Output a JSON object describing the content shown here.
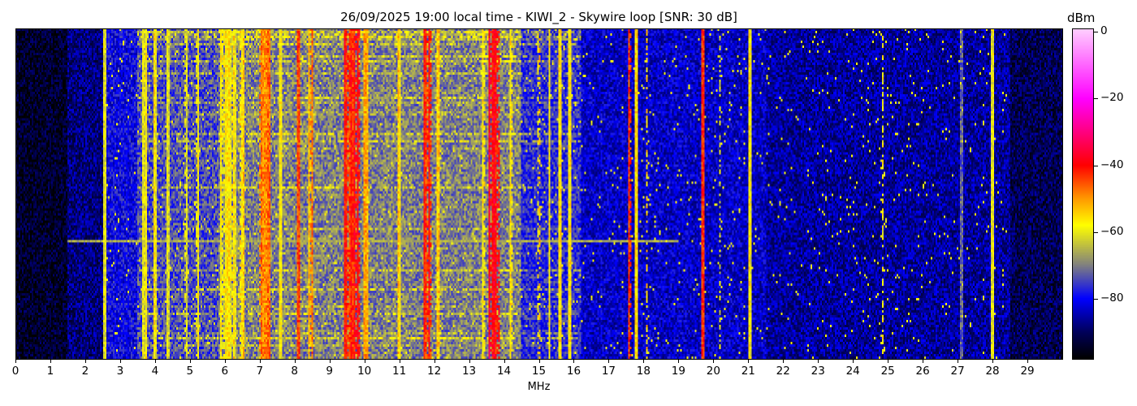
{
  "chart_data": {
    "type": "heatmap",
    "title": "26/09/2025 19:00 local time - KIWI_2 - Skywire loop [SNR: 30 dB]",
    "xlabel": "MHz",
    "xlim": [
      0,
      30
    ],
    "xticks": [
      "0",
      "1",
      "2",
      "3",
      "4",
      "5",
      "6",
      "7",
      "8",
      "9",
      "10",
      "11",
      "12",
      "13",
      "14",
      "15",
      "16",
      "17",
      "18",
      "19",
      "20",
      "21",
      "22",
      "23",
      "24",
      "25",
      "26",
      "27",
      "28",
      "29"
    ],
    "colorbar": {
      "label": "dBm",
      "range": [
        -98,
        1
      ],
      "ticks": [
        0,
        -20,
        -40,
        -60,
        -80
      ],
      "tick_labels": [
        "0",
        "−20",
        "−40",
        "−60",
        "−80"
      ],
      "colormap": [
        {
          "dbm": 1,
          "color": "#ffd0ff"
        },
        {
          "dbm": -20,
          "color": "#ff00ff"
        },
        {
          "dbm": -40,
          "color": "#ff0000"
        },
        {
          "dbm": -50,
          "color": "#ff9900"
        },
        {
          "dbm": -58,
          "color": "#ffff00"
        },
        {
          "dbm": -70,
          "color": "#808080"
        },
        {
          "dbm": -80,
          "color": "#0000ff"
        },
        {
          "dbm": -90,
          "color": "#00005a"
        },
        {
          "dbm": -98,
          "color": "#000000"
        }
      ]
    },
    "noise_floor_dbm": [
      {
        "from": 0,
        "to": 1.5,
        "dbm": -94
      },
      {
        "from": 1.5,
        "to": 2.5,
        "dbm": -88
      },
      {
        "from": 2.5,
        "to": 3.5,
        "dbm": -80
      },
      {
        "from": 3.5,
        "to": 5.8,
        "dbm": -74
      },
      {
        "from": 5.8,
        "to": 14.5,
        "dbm": -70
      },
      {
        "from": 14.5,
        "to": 16.2,
        "dbm": -77
      },
      {
        "from": 16.2,
        "to": 21.5,
        "dbm": -83
      },
      {
        "from": 21.5,
        "to": 28.5,
        "dbm": -86
      },
      {
        "from": 28.5,
        "to": 30,
        "dbm": -91
      }
    ],
    "signals": [
      {
        "mhz": 2.55,
        "width": 0.04,
        "dbm": -60
      },
      {
        "mhz": 3.7,
        "width": 0.08,
        "dbm": -60
      },
      {
        "mhz": 4.0,
        "width": 0.06,
        "dbm": -58
      },
      {
        "mhz": 4.4,
        "width": 0.05,
        "dbm": -60
      },
      {
        "mhz": 4.9,
        "width": 0.05,
        "dbm": -60
      },
      {
        "mhz": 5.2,
        "width": 0.05,
        "dbm": -57
      },
      {
        "mhz": 6.1,
        "width": 0.4,
        "dbm": -58
      },
      {
        "mhz": 6.5,
        "width": 0.12,
        "dbm": -55
      },
      {
        "mhz": 7.15,
        "width": 0.3,
        "dbm": -48
      },
      {
        "mhz": 7.6,
        "width": 0.06,
        "dbm": -57
      },
      {
        "mhz": 8.1,
        "width": 0.06,
        "dbm": -46
      },
      {
        "mhz": 8.45,
        "width": 0.1,
        "dbm": -50
      },
      {
        "mhz": 9.65,
        "width": 0.45,
        "dbm": -42
      },
      {
        "mhz": 10.05,
        "width": 0.1,
        "dbm": -50
      },
      {
        "mhz": 11.0,
        "width": 0.06,
        "dbm": -55
      },
      {
        "mhz": 11.8,
        "width": 0.2,
        "dbm": -42
      },
      {
        "mhz": 12.1,
        "width": 0.05,
        "dbm": -55
      },
      {
        "mhz": 13.4,
        "width": 0.05,
        "dbm": -55
      },
      {
        "mhz": 13.72,
        "width": 0.25,
        "dbm": -38
      },
      {
        "mhz": 14.2,
        "width": 0.08,
        "dbm": -58
      },
      {
        "mhz": 15.0,
        "width": 0.04,
        "dbm": -55
      },
      {
        "mhz": 15.3,
        "width": 0.04,
        "dbm": -55
      },
      {
        "mhz": 15.6,
        "width": 0.05,
        "dbm": -55
      },
      {
        "mhz": 15.9,
        "width": 0.05,
        "dbm": -58
      },
      {
        "mhz": 17.62,
        "width": 0.06,
        "dbm": -42
      },
      {
        "mhz": 17.8,
        "width": 0.04,
        "dbm": -55
      },
      {
        "mhz": 18.1,
        "width": 0.04,
        "dbm": -56
      },
      {
        "mhz": 19.7,
        "width": 0.04,
        "dbm": -45
      },
      {
        "mhz": 20.2,
        "width": 0.04,
        "dbm": -62
      },
      {
        "mhz": 21.05,
        "width": 0.05,
        "dbm": -57
      },
      {
        "mhz": 24.85,
        "width": 0.03,
        "dbm": -58
      },
      {
        "mhz": 27.1,
        "width": 0.04,
        "dbm": -74
      },
      {
        "mhz": 28.0,
        "width": 0.03,
        "dbm": -62
      }
    ],
    "horizontal_burst": {
      "from_mhz": 1.5,
      "to_mhz": 19,
      "dbm": -66
    }
  }
}
